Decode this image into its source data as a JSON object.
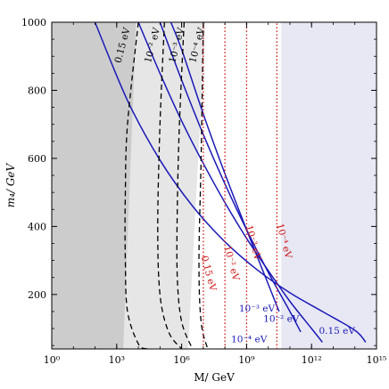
{
  "chart_data": {
    "type": "line",
    "xlabel": "M/ GeV",
    "ylabel": "m₄/ GeV",
    "x_scale": "log10",
    "xlim": [
      1,
      1000000000000000.0
    ],
    "ylim": [
      40,
      1000
    ],
    "x_ticks": [
      {
        "value": 1,
        "label": "10⁰"
      },
      {
        "value": 1000.0,
        "label": "10³"
      },
      {
        "value": 1000000.0,
        "label": "10⁶"
      },
      {
        "value": 1000000000.0,
        "label": "10⁹"
      },
      {
        "value": 1000000000000.0,
        "label": "10¹²"
      },
      {
        "value": 1000000000000000.0,
        "label": "10¹⁵"
      }
    ],
    "y_ticks": [
      {
        "value": 200,
        "label": "200"
      },
      {
        "value": 400,
        "label": "400"
      },
      {
        "value": 600,
        "label": "600"
      },
      {
        "value": 800,
        "label": "800"
      },
      {
        "value": 1000,
        "label": "1000"
      }
    ],
    "regions": [
      {
        "name": "dark-gray",
        "color": "#cccccc",
        "boundary_log10M": [
          [
            1000,
            3.9
          ],
          [
            40,
            3.3
          ]
        ]
      },
      {
        "name": "light-gray",
        "color": "#e6e6e6",
        "boundary_log10M": [
          [
            1000,
            7.1
          ],
          [
            40,
            6.3
          ]
        ]
      },
      {
        "name": "lavender",
        "color": "#e8e8f4",
        "from_log10M": 10.6
      }
    ],
    "series": [
      {
        "label": "0.15 eV",
        "style": "solid",
        "color": "#1a1ab8",
        "x": [
          100.0,
          3160.0,
          100000.0,
          3160000.0,
          100000000.0,
          3160000000.0,
          100000000000.0,
          3160000000000.0,
          100000000000000.0,
          316000000000000.0
        ],
        "y": [
          1000,
          770,
          595,
          460,
          355,
          272,
          205,
          150,
          95,
          60
        ]
      },
      {
        "label": "10⁻² eV",
        "style": "solid",
        "color": "#1a1ab8",
        "x": [
          10000.0,
          100000.0,
          1000000.0,
          10000000.0,
          100000000.0,
          1000000000.0,
          10000000000.0,
          100000000000.0,
          1000000000000.0,
          3160000000000.0
        ],
        "y": [
          1000,
          850,
          710,
          585,
          470,
          365,
          270,
          180,
          100,
          60
        ]
      },
      {
        "label": "10⁻³ eV",
        "style": "solid",
        "color": "#1a1ab8",
        "x": [
          100000.0,
          1000000.0,
          10000000.0,
          100000000.0,
          1000000000.0,
          10000000000.0,
          100000000000.0,
          316000000000.0
        ],
        "y": [
          1000,
          830,
          670,
          525,
          390,
          265,
          150,
          90
        ]
      },
      {
        "label": "10⁻⁴ eV",
        "style": "solid",
        "color": "#1a1ab8",
        "x": [
          316000.0,
          1000000.0,
          10000000.0,
          100000000.0,
          1000000000.0,
          10000000000.0,
          31600000000.0
        ],
        "y": [
          1000,
          920,
          730,
          555,
          390,
          230,
          150
        ]
      },
      {
        "label": "0.15 eV",
        "style": "dashed",
        "color": "#000000",
        "x": [
          10000.0,
          3160.0,
          2500.0,
          2500.0,
          3160.0,
          10000.0,
          25000.0
        ],
        "y": [
          1000,
          700,
          500,
          300,
          150,
          55,
          40
        ]
      },
      {
        "label": "10⁻² eV",
        "style": "dashed",
        "color": "#000000",
        "x": [
          160000.0,
          100000.0,
          79000.0,
          100000.0,
          250000.0,
          1000000.0
        ],
        "y": [
          1000,
          700,
          400,
          200,
          90,
          40
        ]
      },
      {
        "label": "10⁻³ eV",
        "style": "dashed",
        "color": "#000000",
        "x": [
          1300000.0,
          790000.0,
          630000.0,
          630000.0,
          1000000.0,
          3160000.0
        ],
        "y": [
          1000,
          700,
          450,
          250,
          120,
          40
        ]
      },
      {
        "label": "10⁻⁴ eV",
        "style": "dashed",
        "color": "#000000",
        "x": [
          10000000.0,
          7900000.0,
          6300000.0,
          7900000.0,
          16000000.0
        ],
        "y": [
          1000,
          600,
          300,
          120,
          40
        ]
      },
      {
        "label": "0.15 eV",
        "style": "dotted",
        "color": "#cc1111",
        "x": [
          10000000.0,
          10000000.0
        ],
        "y": [
          40,
          1000
        ]
      },
      {
        "label": "10⁻² eV",
        "style": "dotted",
        "color": "#cc1111",
        "x": [
          100000000.0,
          100000000.0
        ],
        "y": [
          40,
          1000
        ]
      },
      {
        "label": "10⁻³ eV",
        "style": "dotted",
        "color": "#cc1111",
        "x": [
          1000000000.0,
          1000000000.0
        ],
        "y": [
          40,
          1000
        ]
      },
      {
        "label": "10⁻⁴ eV",
        "style": "dotted",
        "color": "#cc1111",
        "x": [
          25000000000.0,
          25000000000.0
        ],
        "y": [
          40,
          1000
        ]
      }
    ],
    "annotations": [
      {
        "text": "0.15 eV",
        "color": "#000000",
        "x": 2500.0,
        "y": 930,
        "rotate": -75
      },
      {
        "text": "10⁻² eV",
        "color": "#000000",
        "x": 60000.0,
        "y": 930,
        "rotate": -75
      },
      {
        "text": "10⁻³ eV",
        "color": "#000000",
        "x": 800000.0,
        "y": 930,
        "rotate": -75
      },
      {
        "text": "10⁻⁴ eV",
        "color": "#000000",
        "x": 7000000.0,
        "y": 930,
        "rotate": -75
      },
      {
        "text": "0.15 eV",
        "color": "#cc1111",
        "x": 13000000.0,
        "y": 260,
        "rotate": 75
      },
      {
        "text": "10⁻² eV",
        "color": "#cc1111",
        "x": 150000000.0,
        "y": 290,
        "rotate": 75
      },
      {
        "text": "10⁻³ eV",
        "color": "#cc1111",
        "x": 1500000000.0,
        "y": 350,
        "rotate": 75
      },
      {
        "text": "10⁻⁴ eV",
        "color": "#cc1111",
        "x": 40000000000.0,
        "y": 355,
        "rotate": 75
      },
      {
        "text": "10⁻⁴ eV",
        "color": "#1a1ab8",
        "x": 1300000000.0,
        "y": 60,
        "rotate": 0
      },
      {
        "text": "10⁻³ eV",
        "color": "#1a1ab8",
        "x": 3000000000.0,
        "y": 150,
        "rotate": 0
      },
      {
        "text": "10⁻² eV",
        "color": "#1a1ab8",
        "x": 40000000000.0,
        "y": 120,
        "rotate": 0
      },
      {
        "text": "0.15 eV",
        "color": "#1a1ab8",
        "x": 15000000000000.0,
        "y": 85,
        "rotate": 0
      }
    ]
  }
}
